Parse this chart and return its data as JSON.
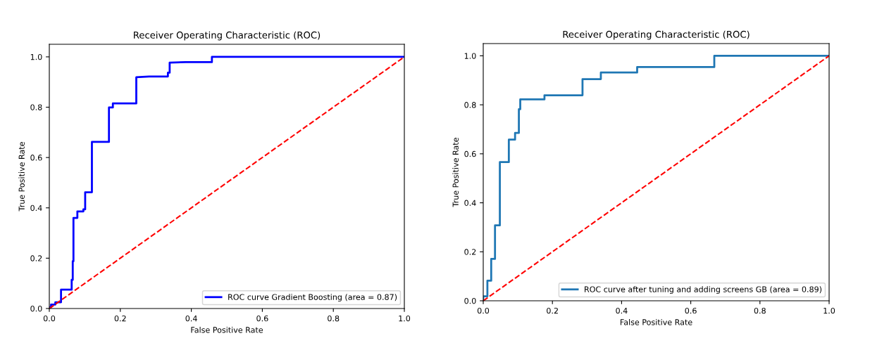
{
  "chart_data": [
    {
      "type": "line",
      "title": "Receiver Operating Characteristic (ROC)",
      "xlabel": "False Positive Rate",
      "ylabel": "True Positive Rate",
      "xlim": [
        0,
        1
      ],
      "ylim": [
        0,
        1.05
      ],
      "xticks": [
        {
          "value": 0,
          "label": "0.0"
        },
        {
          "value": 0.2,
          "label": "0.2"
        },
        {
          "value": 0.4,
          "label": "0.4"
        },
        {
          "value": 0.6,
          "label": "0.6"
        },
        {
          "value": 0.8,
          "label": "0.8"
        },
        {
          "value": 1,
          "label": "1.0"
        }
      ],
      "yticks": [
        {
          "value": 0,
          "label": "0.0"
        },
        {
          "value": 0.2,
          "label": "0.2"
        },
        {
          "value": 0.4,
          "label": "0.4"
        },
        {
          "value": 0.6,
          "label": "0.6"
        },
        {
          "value": 0.8,
          "label": "0.8"
        },
        {
          "value": 1,
          "label": "1.0"
        }
      ],
      "legend": "bottom right",
      "grid": false,
      "series": [
        {
          "name": "ROC curve Gradient Boosting (area = 0.87)",
          "color": "#0000ff",
          "line_style": "solid",
          "x": [
            0,
            0,
            0.005,
            0.005,
            0.017,
            0.017,
            0.033,
            0.033,
            0.063,
            0.063,
            0.066,
            0.066,
            0.068,
            0.068,
            0.079,
            0.079,
            0.096,
            0.096,
            0.101,
            0.101,
            0.12,
            0.12,
            0.168,
            0.168,
            0.179,
            0.179,
            0.245,
            0.245,
            0.281,
            0.334,
            0.334,
            0.339,
            0.339,
            0.384,
            0.458,
            0.458,
            1
          ],
          "values": [
            0,
            0.005,
            0.005,
            0.016,
            0.016,
            0.025,
            0.025,
            0.075,
            0.075,
            0.114,
            0.114,
            0.188,
            0.188,
            0.36,
            0.36,
            0.386,
            0.386,
            0.394,
            0.394,
            0.462,
            0.462,
            0.662,
            0.662,
            0.799,
            0.799,
            0.815,
            0.815,
            0.919,
            0.922,
            0.922,
            0.937,
            0.937,
            0.977,
            0.979,
            0.979,
            1,
            1
          ]
        },
        {
          "color": "#ff0000",
          "line_style": "dashed",
          "x": [
            0,
            1
          ],
          "values": [
            0,
            1
          ]
        }
      ]
    },
    {
      "type": "line",
      "title": "Receiver Operating Characteristic (ROC)",
      "xlabel": "False Positive Rate",
      "ylabel": "True Positive Rate",
      "xlim": [
        0,
        1
      ],
      "ylim": [
        0,
        1.05
      ],
      "xticks": [
        {
          "value": 0,
          "label": "0.0"
        },
        {
          "value": 0.2,
          "label": "0.2"
        },
        {
          "value": 0.4,
          "label": "0.4"
        },
        {
          "value": 0.6,
          "label": "0.6"
        },
        {
          "value": 0.8,
          "label": "0.8"
        },
        {
          "value": 1,
          "label": "1.0"
        }
      ],
      "yticks": [
        {
          "value": 0,
          "label": "0.0"
        },
        {
          "value": 0.2,
          "label": "0.2"
        },
        {
          "value": 0.4,
          "label": "0.4"
        },
        {
          "value": 0.6,
          "label": "0.6"
        },
        {
          "value": 0.8,
          "label": "0.8"
        },
        {
          "value": 1,
          "label": "1.0"
        }
      ],
      "legend": "bottom right",
      "grid": false,
      "series": [
        {
          "name": "ROC curve after tuning and adding screens GB (area = 0.89)",
          "color": "#1f77b4",
          "line_style": "solid",
          "x": [
            0,
            0,
            0.012,
            0.012,
            0.023,
            0.023,
            0.034,
            0.034,
            0.048,
            0.048,
            0.074,
            0.074,
            0.092,
            0.092,
            0.103,
            0.103,
            0.107,
            0.107,
            0.177,
            0.177,
            0.287,
            0.287,
            0.34,
            0.34,
            0.445,
            0.445,
            0.668,
            0.668,
            1
          ],
          "values": [
            0,
            0.018,
            0.018,
            0.082,
            0.082,
            0.171,
            0.171,
            0.308,
            0.308,
            0.566,
            0.566,
            0.658,
            0.658,
            0.685,
            0.685,
            0.782,
            0.782,
            0.822,
            0.822,
            0.839,
            0.839,
            0.905,
            0.905,
            0.932,
            0.932,
            0.954,
            0.954,
            1,
            1
          ]
        },
        {
          "color": "#ff0000",
          "line_style": "dashed",
          "x": [
            0,
            1
          ],
          "values": [
            0,
            1
          ]
        }
      ]
    }
  ]
}
